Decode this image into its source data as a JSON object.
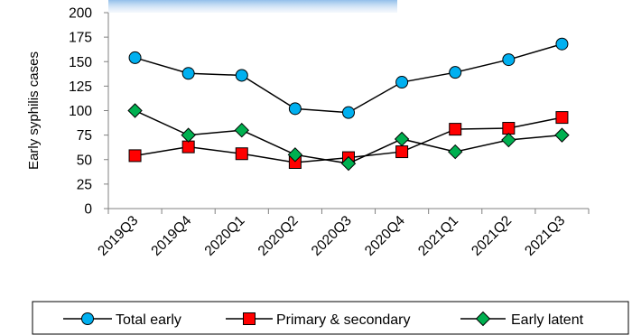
{
  "chart_data": {
    "type": "line",
    "title": "",
    "xlabel": "",
    "ylabel": "Early syphilis cases",
    "ylim": [
      0,
      200
    ],
    "ytick_step": 25,
    "grid": false,
    "legend_position": "bottom",
    "categories": [
      "2019Q3",
      "2019Q4",
      "2020Q1",
      "2020Q2",
      "2020Q3",
      "2020Q4",
      "2021Q1",
      "2021Q2",
      "2021Q3"
    ],
    "series": [
      {
        "name": "Total early",
        "marker": "circle",
        "color": "#00b0f0",
        "values": [
          154,
          138,
          136,
          102,
          98,
          129,
          139,
          152,
          168
        ]
      },
      {
        "name": "Primary & secondary",
        "marker": "square",
        "color": "#ff0000",
        "values": [
          54,
          63,
          56,
          47,
          52,
          58,
          81,
          82,
          93
        ]
      },
      {
        "name": "Early latent",
        "marker": "diamond",
        "color": "#00b050",
        "values": [
          100,
          75,
          80,
          55,
          46,
          71,
          58,
          70,
          75
        ]
      }
    ],
    "line_color": "#000000"
  }
}
